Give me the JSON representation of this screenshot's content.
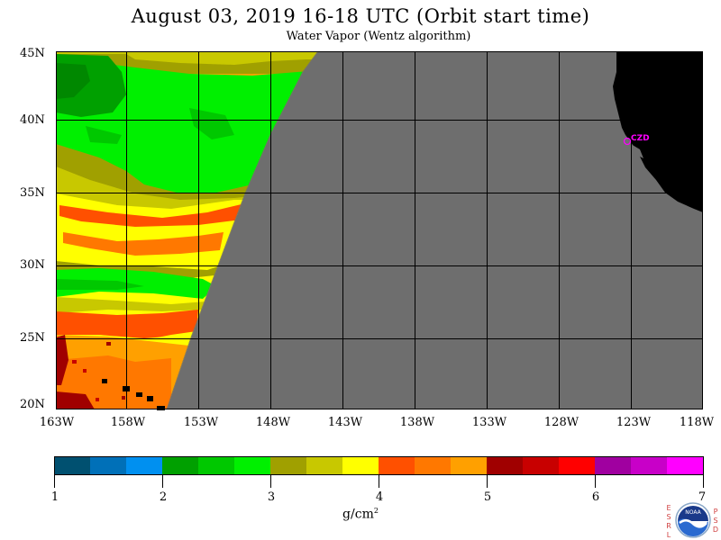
{
  "header": {
    "title": "August 03, 2019  16-18 UTC  (Orbit start time)",
    "subtitle": "Water Vapor (Wentz algorithm)"
  },
  "map": {
    "lat_labels": [
      "45N",
      "40N",
      "35N",
      "30N",
      "25N",
      "20N"
    ],
    "lon_labels": [
      "163W",
      "158W",
      "153W",
      "148W",
      "143W",
      "138W",
      "133W",
      "128W",
      "123W",
      "118W"
    ],
    "station_label": "CZD",
    "colors": {
      "no_data": "#6e6e6e",
      "land": "#000000",
      "grid": "#000000",
      "station": "#ff00ff"
    }
  },
  "colorbar": {
    "ticks": [
      "1",
      "2",
      "3",
      "4",
      "5",
      "6",
      "7"
    ],
    "units": "g/cm",
    "units_sup": "2",
    "colors": [
      "#005070",
      "#0070b8",
      "#0090f0",
      "#00a000",
      "#00c800",
      "#00f000",
      "#a0a000",
      "#c8c800",
      "#ffff00",
      "#ff5000",
      "#ff7800",
      "#ffa000",
      "#a00000",
      "#c80000",
      "#ff0000",
      "#a000a0",
      "#c800c8",
      "#ff00ff"
    ]
  },
  "logo": {
    "text": "NOAA",
    "left_letters": [
      "E",
      "S",
      "R",
      "L"
    ],
    "right_letters": [
      "P",
      "S",
      "D"
    ]
  }
}
